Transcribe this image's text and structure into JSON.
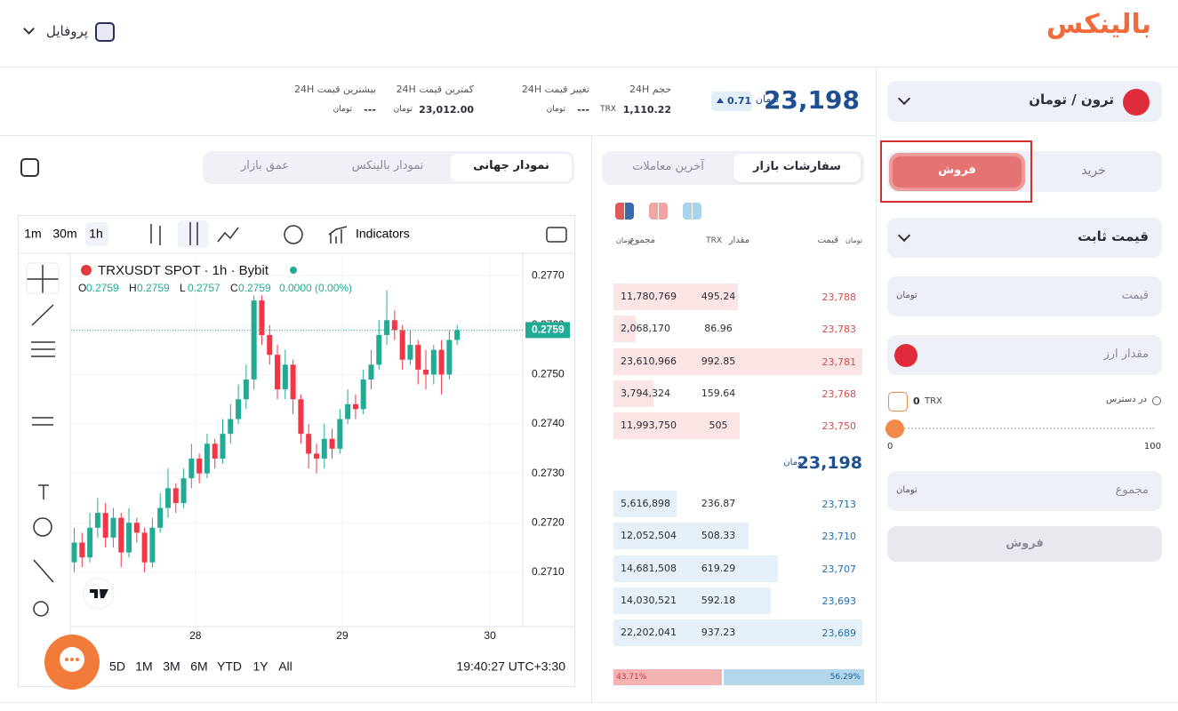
{
  "header": {
    "logo": "بالینکس",
    "profile": "پروفایل"
  },
  "market": {
    "pair": "ترون / تومان",
    "price": "23,198",
    "unit": "تومان",
    "change": "0.71",
    "stats": [
      {
        "label": "حجم 24H",
        "value": "1,110.22",
        "unit": "TRX"
      },
      {
        "label": "تغییر قیمت 24H",
        "value": "---",
        "unit": "تومان"
      },
      {
        "label": "کمترین قیمت 24H",
        "value": "23,012.00",
        "unit": "تومان"
      },
      {
        "label": "بیشترین قیمت 24H",
        "value": "---",
        "unit": "تومان"
      }
    ]
  },
  "chart_tabs": [
    "نمودار جهانی",
    "نمودار بالینکس",
    "عمق بازار"
  ],
  "chart": {
    "type": "candlestick",
    "intervals": [
      "1m",
      "30m",
      "1h"
    ],
    "indicators": "Indicators",
    "symbol": "TRXUSDT SPOT · 1h · Bybit",
    "ohlc": [
      {
        "key": "O",
        "value": "0.2759"
      },
      {
        "key": "H",
        "value": "0.2759"
      },
      {
        "key": "L",
        "value": "0.2757"
      },
      {
        "key": "C",
        "value": "0.2759"
      }
    ],
    "change": "0.0000 (0.00%)",
    "up_color": "#22ab94",
    "down_color": "#f23645",
    "grid": true,
    "candles": [
      [
        0.2712,
        0.2719,
        0.271,
        0.2716
      ],
      [
        0.2716,
        0.2718,
        0.2711,
        0.2713
      ],
      [
        0.2713,
        0.2722,
        0.2712,
        0.2719
      ],
      [
        0.2719,
        0.2725,
        0.2717,
        0.2722
      ],
      [
        0.2722,
        0.2724,
        0.2715,
        0.2717
      ],
      [
        0.2717,
        0.2723,
        0.2715,
        0.2721
      ],
      [
        0.2721,
        0.2722,
        0.2711,
        0.2714
      ],
      [
        0.2714,
        0.2723,
        0.2713,
        0.272
      ],
      [
        0.272,
        0.2721,
        0.2716,
        0.2718
      ],
      [
        0.2718,
        0.2719,
        0.271,
        0.2712
      ],
      [
        0.2712,
        0.2721,
        0.2711,
        0.2719
      ],
      [
        0.2719,
        0.2726,
        0.2718,
        0.2723
      ],
      [
        0.2723,
        0.2731,
        0.2721,
        0.2727
      ],
      [
        0.2727,
        0.2728,
        0.2722,
        0.2724
      ],
      [
        0.2724,
        0.2731,
        0.2723,
        0.2729
      ],
      [
        0.2729,
        0.2736,
        0.2727,
        0.2733
      ],
      [
        0.2733,
        0.2734,
        0.2728,
        0.273
      ],
      [
        0.273,
        0.2738,
        0.2729,
        0.2736
      ],
      [
        0.2736,
        0.2737,
        0.2731,
        0.2733
      ],
      [
        0.2733,
        0.2741,
        0.2732,
        0.2738
      ],
      [
        0.2738,
        0.2744,
        0.2736,
        0.2741
      ],
      [
        0.2741,
        0.2748,
        0.274,
        0.2745
      ],
      [
        0.2745,
        0.2752,
        0.2743,
        0.2749
      ],
      [
        0.2749,
        0.2766,
        0.2747,
        0.2765
      ],
      [
        0.2765,
        0.2766,
        0.2756,
        0.2758
      ],
      [
        0.2758,
        0.276,
        0.2752,
        0.2754
      ],
      [
        0.2754,
        0.2756,
        0.2745,
        0.2747
      ],
      [
        0.2747,
        0.2755,
        0.2745,
        0.2752
      ],
      [
        0.2752,
        0.2753,
        0.2742,
        0.2745
      ],
      [
        0.2745,
        0.2746,
        0.2736,
        0.2738
      ],
      [
        0.2738,
        0.274,
        0.2731,
        0.2734
      ],
      [
        0.2734,
        0.2736,
        0.273,
        0.2733
      ],
      [
        0.2733,
        0.274,
        0.2731,
        0.2737
      ],
      [
        0.2737,
        0.2739,
        0.2733,
        0.2735
      ],
      [
        0.2735,
        0.2743,
        0.2734,
        0.2741
      ],
      [
        0.2741,
        0.2747,
        0.274,
        0.2744
      ],
      [
        0.2744,
        0.2746,
        0.2741,
        0.2743
      ],
      [
        0.2743,
        0.2751,
        0.2742,
        0.2749
      ],
      [
        0.2749,
        0.2755,
        0.2747,
        0.2752
      ],
      [
        0.2752,
        0.2761,
        0.2751,
        0.2758
      ],
      [
        0.2758,
        0.2767,
        0.2756,
        0.2761
      ],
      [
        0.2761,
        0.2763,
        0.2757,
        0.2759
      ],
      [
        0.2759,
        0.276,
        0.2751,
        0.2753
      ],
      [
        0.2753,
        0.2759,
        0.2752,
        0.2756
      ],
      [
        0.2756,
        0.2757,
        0.2748,
        0.2751
      ],
      [
        0.2751,
        0.2755,
        0.2747,
        0.275
      ],
      [
        0.275,
        0.2756,
        0.2748,
        0.2755
      ],
      [
        0.2755,
        0.2757,
        0.2746,
        0.275
      ],
      [
        0.275,
        0.2759,
        0.2749,
        0.2757
      ],
      [
        0.2757,
        0.276,
        0.2756,
        0.2759
      ]
    ],
    "ylim": [
      0.2699,
      0.2774
    ],
    "yticks": [
      {
        "value": 0.277,
        "label": "0.2770"
      },
      {
        "value": 0.276,
        "label": "0.2760"
      },
      {
        "value": 0.275,
        "label": "0.2750"
      },
      {
        "value": 0.274,
        "label": "0.2740"
      },
      {
        "value": 0.273,
        "label": "0.2730"
      },
      {
        "value": 0.272,
        "label": "0.2720"
      },
      {
        "value": 0.271,
        "label": "0.2710"
      }
    ],
    "xlim": [
      -0.4,
      57.4
    ],
    "xticks": [
      {
        "value": 15.5,
        "label": "28"
      },
      {
        "value": 34.3,
        "label": "29"
      },
      {
        "value": 53.2,
        "label": "30"
      }
    ],
    "last_price": {
      "value": 0.2759,
      "label": "0.2759"
    },
    "ranges": [
      "5D",
      "1M",
      "3M",
      "6M",
      "YTD",
      "1Y",
      "All"
    ],
    "time": "19:40:27 UTC+3:30"
  },
  "order_book": {
    "tabs": [
      "سفارشات بازار",
      "آخرین معاملات"
    ],
    "headers": {
      "price": "قیمت",
      "amount": "مقدار",
      "amount_unit": "TRX",
      "total": "مجموع",
      "unit": "تومان"
    },
    "asks": [
      {
        "price": "23,788",
        "amount": "495.24",
        "total": 11780769,
        "total_label": "11,780,769"
      },
      {
        "price": "23,783",
        "amount": "86.96",
        "total": 2068170,
        "total_label": "2,068,170"
      },
      {
        "price": "23,781",
        "amount": "992.85",
        "total": 23610966,
        "total_label": "23,610,966"
      },
      {
        "price": "23,768",
        "amount": "159.64",
        "total": 3794324,
        "total_label": "3,794,324"
      },
      {
        "price": "23,750",
        "amount": "505",
        "total": 11993750,
        "total_label": "11,993,750"
      }
    ],
    "mid_price": "23,198",
    "bids": [
      {
        "price": "23,713",
        "amount": "236.87",
        "total": 5616898,
        "total_label": "5,616,898"
      },
      {
        "price": "23,710",
        "amount": "508.33",
        "total": 12052504,
        "total_label": "12,052,504"
      },
      {
        "price": "23,707",
        "amount": "619.29",
        "total": 14681508,
        "total_label": "14,681,508"
      },
      {
        "price": "23,693",
        "amount": "592.18",
        "total": 14030521,
        "total_label": "14,030,521"
      },
      {
        "price": "23,689",
        "amount": "937.23",
        "total": 22202041,
        "total_label": "22,202,041"
      }
    ],
    "ratio": {
      "sell": 43.71,
      "sell_label": "43.71%",
      "buy": 56.29,
      "buy_label": "56.29%"
    }
  },
  "form": {
    "sides": [
      "خرید",
      "فروش"
    ],
    "order_type": "قیمت ثابت",
    "price": "قیمت",
    "amount": "مقدار ارز",
    "available": "در دسترس",
    "balance": "0",
    "balance_unit": "TRX",
    "slider_min": "0",
    "slider_max": "100",
    "total": "مجموع",
    "submit": "فروش",
    "unit": "تومان"
  }
}
